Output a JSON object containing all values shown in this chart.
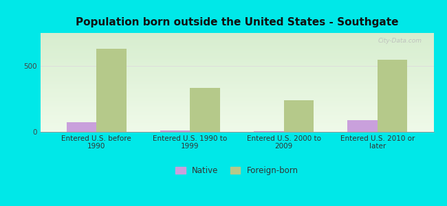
{
  "title": "Population born outside the United States - Southgate",
  "categories": [
    "Entered U.S. before\n1990",
    "Entered U.S. 1990 to\n1999",
    "Entered U.S. 2000 to\n2009",
    "Entered U.S. 2010 or\nlater"
  ],
  "native_values": [
    75,
    10,
    5,
    90
  ],
  "foreign_values": [
    630,
    335,
    240,
    545
  ],
  "native_color": "#c9a0dc",
  "foreign_color": "#b5c98a",
  "background_color": "#00e8e8",
  "yticks": [
    0,
    500
  ],
  "ylim": [
    0,
    750
  ],
  "bar_width": 0.32,
  "title_fontsize": 11,
  "tick_fontsize": 7.5,
  "legend_labels": [
    "Native",
    "Foreign-born"
  ],
  "watermark": "City-Data.com"
}
